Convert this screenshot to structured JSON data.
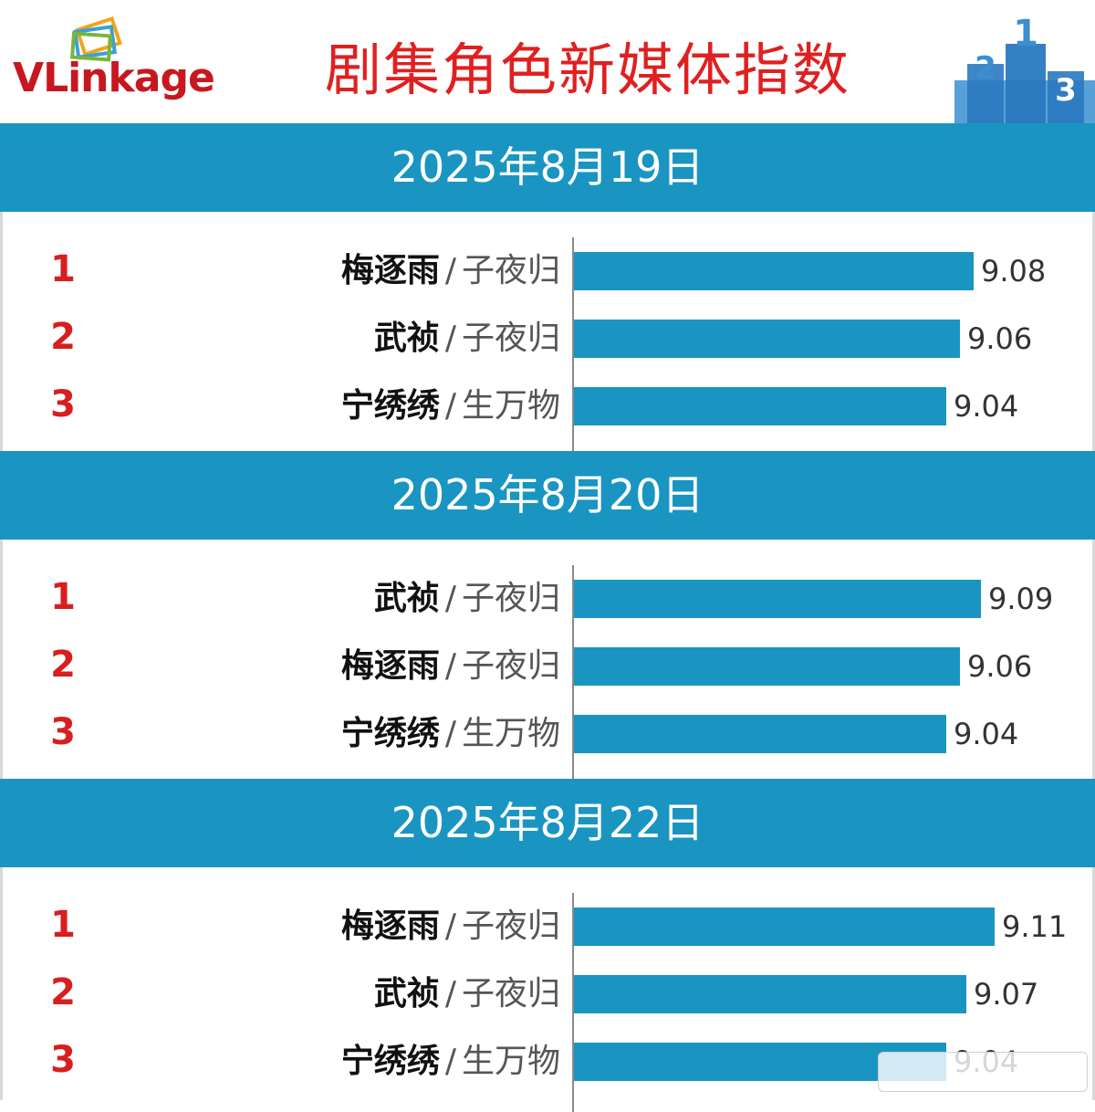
{
  "header": {
    "logo_text_v": "V",
    "logo_text_rest": "Linkage",
    "title": "剧集角色新媒体指数"
  },
  "podium_labels": [
    "2",
    "1",
    "3"
  ],
  "colors": {
    "band": "#1a95c2",
    "bar": "#1a95c2",
    "title": "#e02020",
    "rank": "#d81e1e"
  },
  "chart_data": [
    {
      "type": "bar",
      "title": "2025年8月19日",
      "orientation": "horizontal",
      "ranks": [
        "1",
        "2",
        "3"
      ],
      "roles": [
        "梅逐雨",
        "武祯",
        "宁绣绣"
      ],
      "dramas": [
        "子夜归",
        "子夜归",
        "生万物"
      ],
      "values": [
        9.08,
        9.06,
        9.04
      ],
      "value_labels": [
        "9.08",
        "9.06",
        "9.04"
      ]
    },
    {
      "type": "bar",
      "title": "2025年8月20日",
      "orientation": "horizontal",
      "ranks": [
        "1",
        "2",
        "3"
      ],
      "roles": [
        "武祯",
        "梅逐雨",
        "宁绣绣"
      ],
      "dramas": [
        "子夜归",
        "子夜归",
        "生万物"
      ],
      "values": [
        9.09,
        9.06,
        9.04
      ],
      "value_labels": [
        "9.09",
        "9.06",
        "9.04"
      ]
    },
    {
      "type": "bar",
      "title": "2025年8月22日",
      "orientation": "horizontal",
      "ranks": [
        "1",
        "2",
        "3"
      ],
      "roles": [
        "梅逐雨",
        "武祯",
        "宁绣绣"
      ],
      "dramas": [
        "子夜归",
        "子夜归",
        "生万物"
      ],
      "values": [
        9.11,
        9.07,
        9.04
      ],
      "value_labels": [
        "9.11",
        "9.07",
        "9.04"
      ]
    }
  ]
}
